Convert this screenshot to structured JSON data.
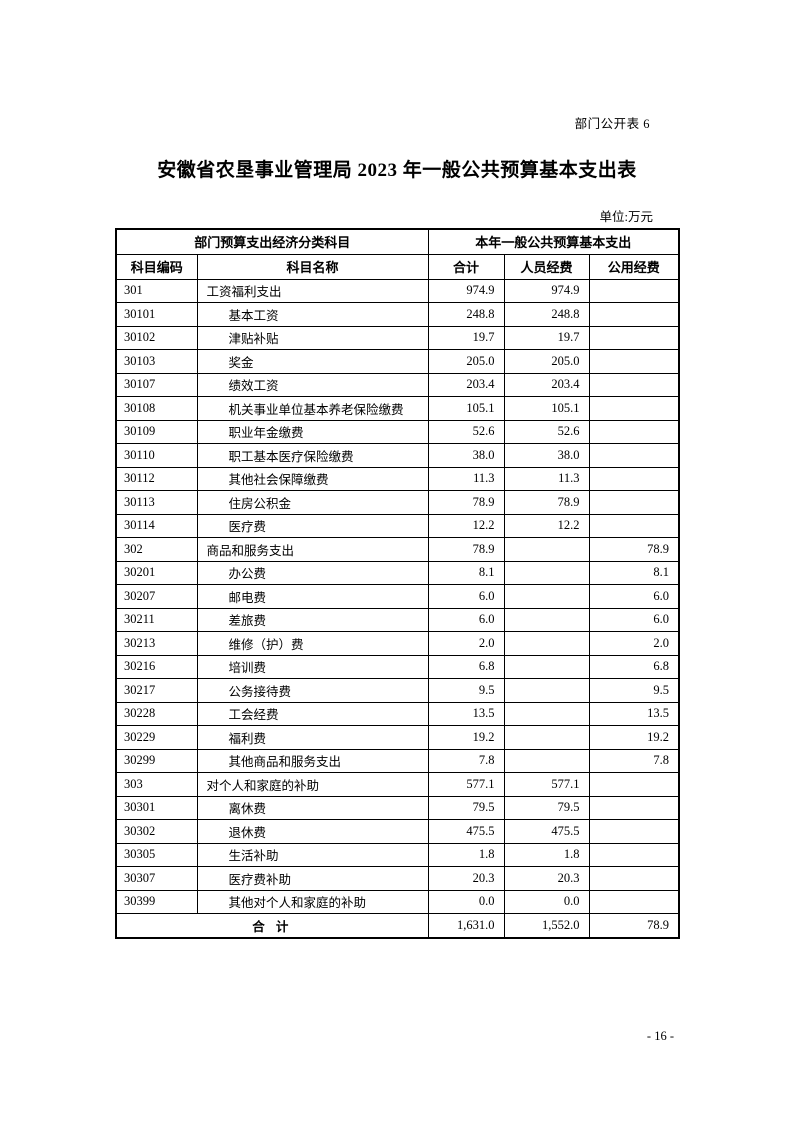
{
  "page": {
    "doc_label": "部门公开表 6",
    "title": "安徽省农垦事业管理局 2023 年一般公共预算基本支出表",
    "unit_note": "单位:万元",
    "page_number": "- 16 -"
  },
  "table": {
    "header": {
      "group_left": "部门预算支出经济分类科目",
      "group_right": "本年一般公共预算基本支出",
      "columns": [
        "科目编码",
        "科目名称",
        "合计",
        "人员经费",
        "公用经费"
      ]
    },
    "rows": [
      {
        "code": "301",
        "name": "工资福利支出",
        "level": 0,
        "total": "974.9",
        "personnel": "974.9",
        "public": ""
      },
      {
        "code": "30101",
        "name": "基本工资",
        "level": 1,
        "total": "248.8",
        "personnel": "248.8",
        "public": ""
      },
      {
        "code": "30102",
        "name": "津贴补贴",
        "level": 1,
        "total": "19.7",
        "personnel": "19.7",
        "public": ""
      },
      {
        "code": "30103",
        "name": "奖金",
        "level": 1,
        "total": "205.0",
        "personnel": "205.0",
        "public": ""
      },
      {
        "code": "30107",
        "name": "绩效工资",
        "level": 1,
        "total": "203.4",
        "personnel": "203.4",
        "public": ""
      },
      {
        "code": "30108",
        "name": "机关事业单位基本养老保险缴费",
        "level": 1,
        "total": "105.1",
        "personnel": "105.1",
        "public": ""
      },
      {
        "code": "30109",
        "name": "职业年金缴费",
        "level": 1,
        "total": "52.6",
        "personnel": "52.6",
        "public": ""
      },
      {
        "code": "30110",
        "name": "职工基本医疗保险缴费",
        "level": 1,
        "total": "38.0",
        "personnel": "38.0",
        "public": ""
      },
      {
        "code": "30112",
        "name": "其他社会保障缴费",
        "level": 1,
        "total": "11.3",
        "personnel": "11.3",
        "public": ""
      },
      {
        "code": "30113",
        "name": "住房公积金",
        "level": 1,
        "total": "78.9",
        "personnel": "78.9",
        "public": ""
      },
      {
        "code": "30114",
        "name": "医疗费",
        "level": 1,
        "total": "12.2",
        "personnel": "12.2",
        "public": ""
      },
      {
        "code": "302",
        "name": "商品和服务支出",
        "level": 0,
        "total": "78.9",
        "personnel": "",
        "public": "78.9"
      },
      {
        "code": "30201",
        "name": "办公费",
        "level": 1,
        "total": "8.1",
        "personnel": "",
        "public": "8.1"
      },
      {
        "code": "30207",
        "name": "邮电费",
        "level": 1,
        "total": "6.0",
        "personnel": "",
        "public": "6.0"
      },
      {
        "code": "30211",
        "name": "差旅费",
        "level": 1,
        "total": "6.0",
        "personnel": "",
        "public": "6.0"
      },
      {
        "code": "30213",
        "name": "维修（护）费",
        "level": 1,
        "total": "2.0",
        "personnel": "",
        "public": "2.0"
      },
      {
        "code": "30216",
        "name": "培训费",
        "level": 1,
        "total": "6.8",
        "personnel": "",
        "public": "6.8"
      },
      {
        "code": "30217",
        "name": "公务接待费",
        "level": 1,
        "total": "9.5",
        "personnel": "",
        "public": "9.5"
      },
      {
        "code": "30228",
        "name": "工会经费",
        "level": 1,
        "total": "13.5",
        "personnel": "",
        "public": "13.5"
      },
      {
        "code": "30229",
        "name": "福利费",
        "level": 1,
        "total": "19.2",
        "personnel": "",
        "public": "19.2"
      },
      {
        "code": "30299",
        "name": "其他商品和服务支出",
        "level": 1,
        "total": "7.8",
        "personnel": "",
        "public": "7.8"
      },
      {
        "code": "303",
        "name": "对个人和家庭的补助",
        "level": 0,
        "total": "577.1",
        "personnel": "577.1",
        "public": ""
      },
      {
        "code": "30301",
        "name": "离休费",
        "level": 1,
        "total": "79.5",
        "personnel": "79.5",
        "public": ""
      },
      {
        "code": "30302",
        "name": "退休费",
        "level": 1,
        "total": "475.5",
        "personnel": "475.5",
        "public": ""
      },
      {
        "code": "30305",
        "name": "生活补助",
        "level": 1,
        "total": "1.8",
        "personnel": "1.8",
        "public": ""
      },
      {
        "code": "30307",
        "name": "医疗费补助",
        "level": 1,
        "total": "20.3",
        "personnel": "20.3",
        "public": ""
      },
      {
        "code": "30399",
        "name": "其他对个人和家庭的补助",
        "level": 1,
        "total": "0.0",
        "personnel": "0.0",
        "public": ""
      }
    ],
    "total_row": {
      "label": "合 计",
      "total": "1,631.0",
      "personnel": "1,552.0",
      "public": "78.9"
    }
  }
}
